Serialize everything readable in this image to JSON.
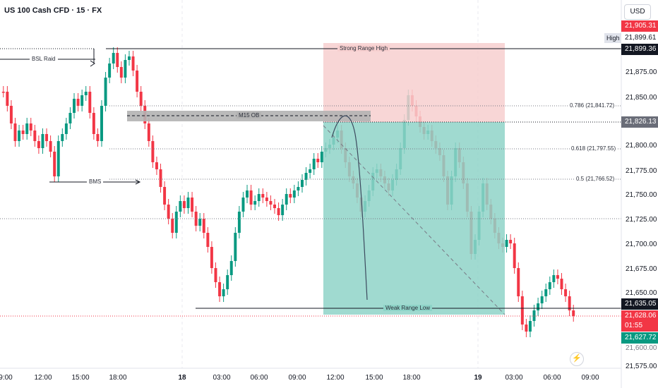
{
  "header": {
    "title": "US 100 Cash CFD · 15 · FX",
    "currency_button": "USD"
  },
  "colors": {
    "up": "#089981",
    "down": "#f23645",
    "premium_zone": "#f7cfcf",
    "discount_zone": "#8fd4c8",
    "ob_box": "#b2b2b2"
  },
  "y_axis": {
    "ticks": [
      "21,875.00",
      "21,850.00",
      "21,800.00",
      "21,775.00",
      "21,750.00",
      "21,725.00",
      "21,700.00",
      "21,675.00",
      "21,650.00",
      "21,575.00"
    ],
    "partial_ticks": [
      "21,905.31",
      "21,600.00"
    ]
  },
  "price_tags": {
    "high_label": "High",
    "high_value": "21,899.61",
    "strong_high": "21,899.36",
    "top_zone": "21,826.13",
    "weak_low": "21,635.05",
    "current_price": "21,628.06",
    "countdown": "01:55",
    "bid": "21,627.72"
  },
  "x_axis": {
    "ticks": [
      "9:00",
      "12:00",
      "15:00",
      "18:00",
      "18",
      "03:00",
      "06:00",
      "09:00",
      "12:00",
      "15:00",
      "18:00",
      "19",
      "03:00",
      "06:00",
      "09:00"
    ]
  },
  "annotations": {
    "bsl_raid": "BSL Raid",
    "bms": "BMS",
    "m15_ob": "M15 OB",
    "strong_range_high": "Strong Range High",
    "weak_range_low": "Weak Range Low",
    "fib_0786": "0.786 (21,841.72)",
    "fib_0618": "0.618 (21,797.55)",
    "fib_05": "0.5 (21,766.52)"
  },
  "icons": {
    "replay": "lightning-bolt-icon"
  }
}
